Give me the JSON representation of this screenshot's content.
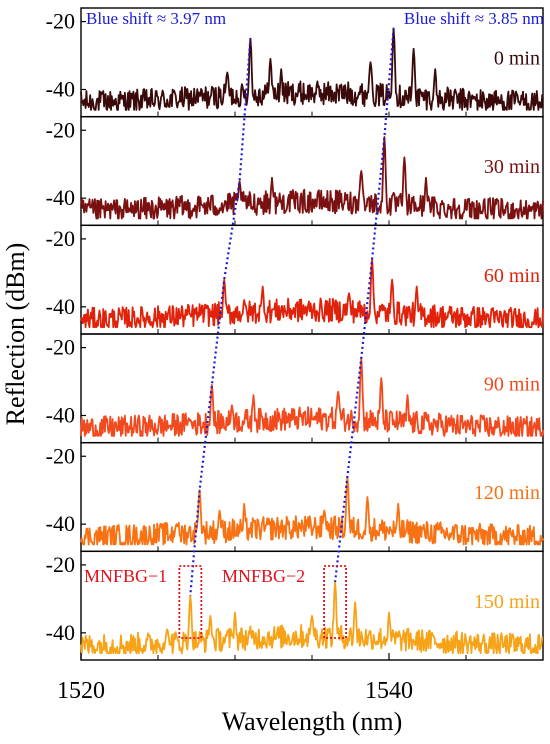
{
  "chart_data": {
    "type": "line",
    "xlabel": "Wavelength (nm)",
    "ylabel": "Reflection (dBm)",
    "xlim": [
      1520,
      1550
    ],
    "ylim": [
      -48,
      -16
    ],
    "x_ticks": [
      1520,
      1540
    ],
    "y_ticks": [
      -20,
      -40
    ],
    "y_tick_labels": [
      "-20",
      "-40"
    ],
    "x_tick_labels": [
      "1520",
      "1540"
    ],
    "panels": [
      {
        "label": "0   min",
        "color": "#3a0a0a",
        "peaks": [
          [
            1531.0,
            -25.0
          ],
          [
            1540.3,
            -22.0
          ]
        ]
      },
      {
        "label": "30   min",
        "color": "#7a1010",
        "peaks": [
          [
            1530.3,
            -35.0
          ],
          [
            1539.7,
            -22.0
          ]
        ]
      },
      {
        "label": "60   min",
        "color": "#e0220a",
        "peaks": [
          [
            1529.3,
            -32.0
          ],
          [
            1538.9,
            -26.0
          ]
        ]
      },
      {
        "label": "90   min",
        "color": "#f24a1e",
        "peaks": [
          [
            1528.5,
            -31.0
          ],
          [
            1538.2,
            -23.0
          ]
        ]
      },
      {
        "label": "120 min",
        "color": "#f87214",
        "peaks": [
          [
            1527.7,
            -30.0
          ],
          [
            1537.3,
            -26.0
          ]
        ]
      },
      {
        "label": "150 min",
        "color": "#f7a318",
        "peaks": [
          [
            1527.1,
            -29.0
          ],
          [
            1536.5,
            -25.0
          ]
        ]
      }
    ],
    "annotations": [
      {
        "text": "Blue shift ≈ 3.97 nm",
        "color": "#1b1bd6"
      },
      {
        "text": "Blue shift ≈ 3.85 nm",
        "color": "#1b1bd6"
      },
      {
        "text": "MNFBG−1",
        "color": "#e0101a"
      },
      {
        "text": "MNFBG−2",
        "color": "#e0101a"
      }
    ],
    "shift_line_color": "#1b1bd6",
    "box_color": "#e0101a"
  }
}
